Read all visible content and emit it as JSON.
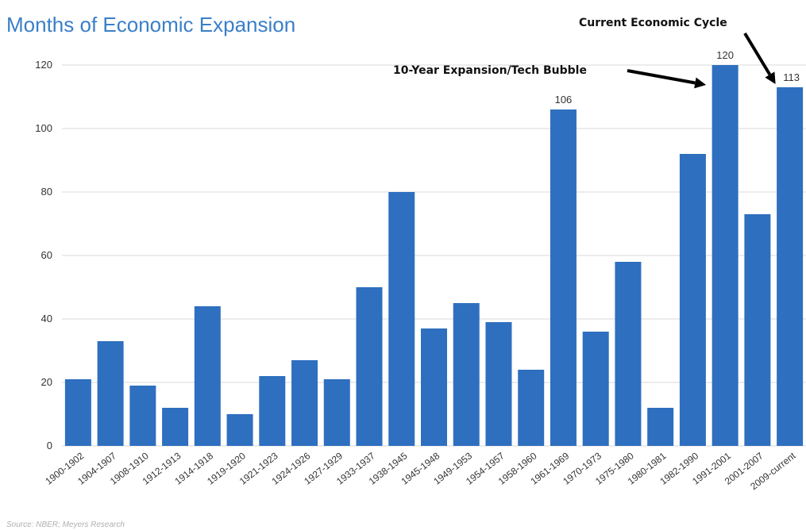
{
  "chart_data": {
    "type": "bar",
    "title": "Months of Economic Expansion",
    "xlabel": "",
    "ylabel": "",
    "ylim": [
      0,
      120
    ],
    "yticks": [
      "0",
      "20",
      "40",
      "60",
      "80",
      "100",
      "120"
    ],
    "grid": true,
    "categories": [
      "1900-1902",
      "1904-1907",
      "1908-1910",
      "1912-1913",
      "1914-1918",
      "1919-1920",
      "1921-1923",
      "1924-1926",
      "1927-1929",
      "1933-1937",
      "1938-1945",
      "1945-1948",
      "1949-1953",
      "1954-1957",
      "1958-1960",
      "1961-1969",
      "1970-1973",
      "1975-1980",
      "1980-1981",
      "1982-1990",
      "1991-2001",
      "2001-2007",
      "2009-current"
    ],
    "values": [
      21,
      33,
      19,
      12,
      44,
      10,
      22,
      27,
      21,
      50,
      80,
      37,
      45,
      39,
      24,
      106,
      36,
      58,
      12,
      92,
      120,
      73,
      113
    ],
    "data_labels": [
      {
        "category": "1961-1969",
        "text": "106"
      },
      {
        "category": "1991-2001",
        "text": "120"
      },
      {
        "category": "2009-current",
        "text": "113"
      }
    ],
    "annotations": [
      {
        "text": "10-Year Expansion/Tech Bubble",
        "target": "1991-2001"
      },
      {
        "text": "Current Economic Cycle",
        "target": "2009-current"
      }
    ],
    "bar_color": "#2e6fbf",
    "source": "Source: NBER; Meyers Research"
  }
}
